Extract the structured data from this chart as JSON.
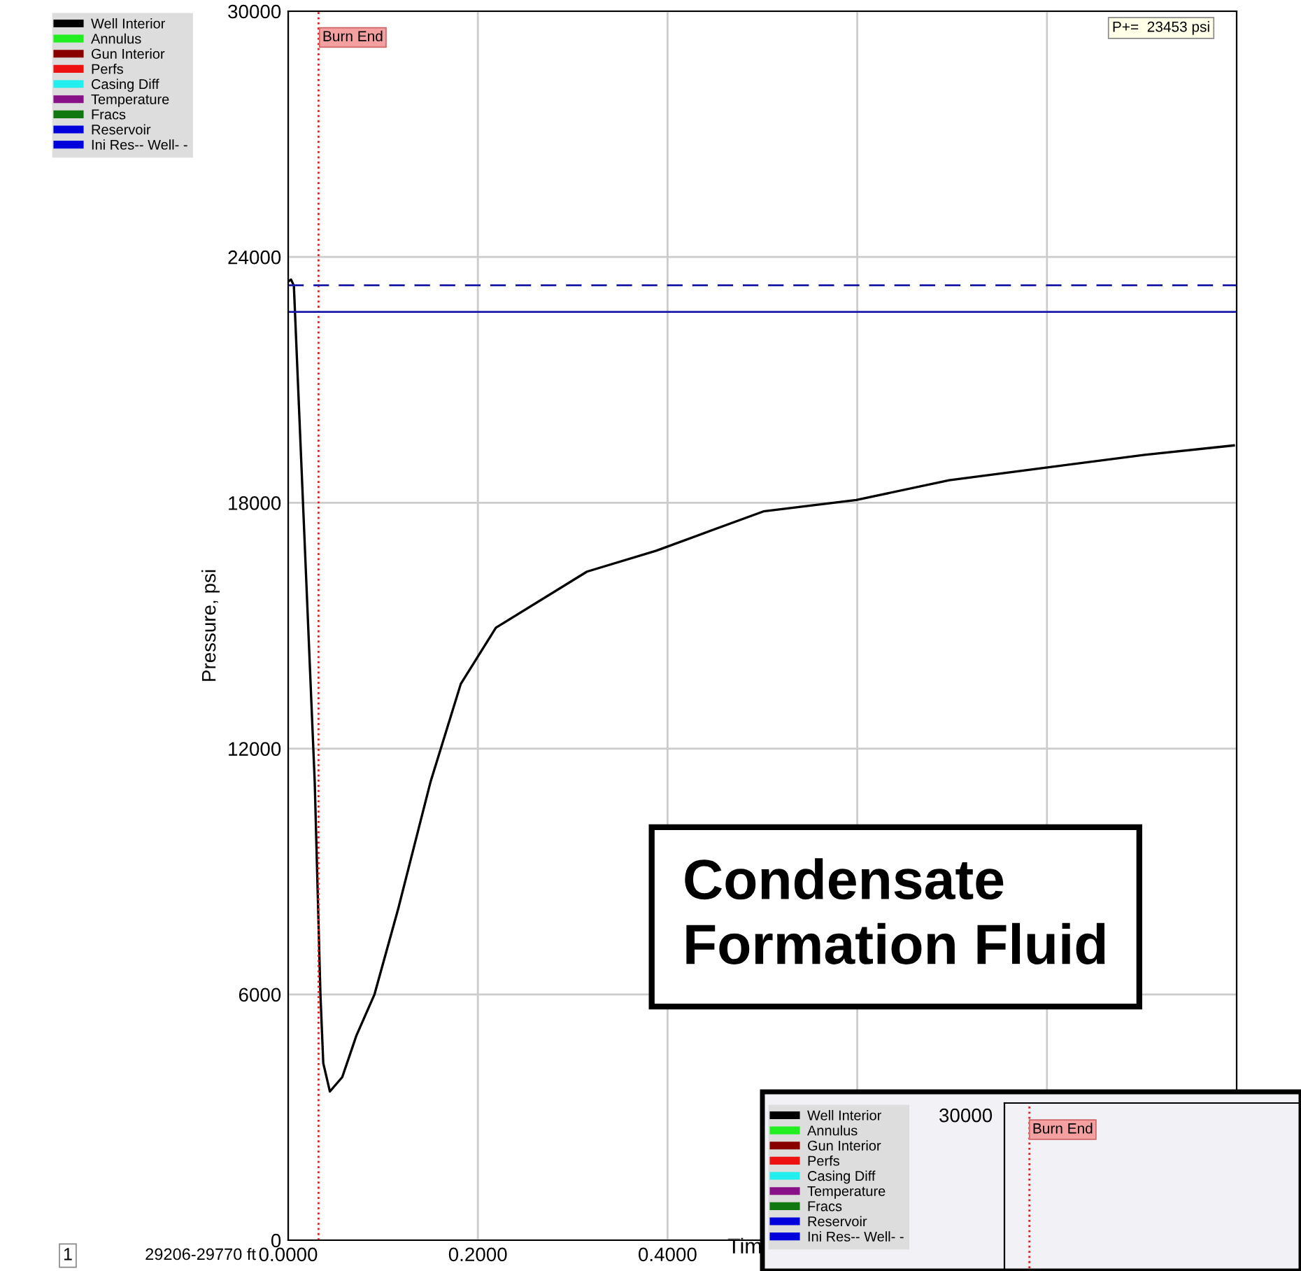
{
  "chart_data": [
    {
      "type": "line",
      "ylabel": "Pressure, psi",
      "xlabel": "Tim",
      "xlim": [
        0,
        1.0
      ],
      "xticks": [
        {
          "value": 0,
          "label": "0.0000"
        },
        {
          "value": 0.2,
          "label": "0.2000"
        },
        {
          "value": 0.4,
          "label": "0.4000"
        },
        {
          "value": 0.6,
          "label": null
        },
        {
          "value": 0.8,
          "label": null
        }
      ],
      "ylim": [
        0,
        30000
      ],
      "yticks": [
        0,
        6000,
        12000,
        18000,
        24000,
        30000
      ],
      "grid": true,
      "legend": "top left",
      "series": [
        {
          "name": "Well Interior",
          "color": "#000000",
          "x": [
            0,
            0.003,
            0.006,
            0.028,
            0.034,
            0.037,
            0.044,
            0.057,
            0.072,
            0.091,
            0.116,
            0.15,
            0.182,
            0.219,
            0.315,
            0.388,
            0.501,
            0.599,
            0.697,
            0.799,
            0.903,
            0.997
          ],
          "values": [
            23400,
            23450,
            23300,
            11180,
            6000,
            4320,
            3630,
            3980,
            5000,
            6000,
            8090,
            11180,
            13580,
            14950,
            16320,
            16830,
            17790,
            18070,
            18550,
            18860,
            19170,
            19400
          ]
        },
        {
          "name": "Annulus",
          "color": "#22ee22"
        },
        {
          "name": "Gun Interior",
          "color": "#880000"
        },
        {
          "name": "Perfs",
          "color": "#ee1111"
        },
        {
          "name": "Casing Diff",
          "color": "#22eeee"
        },
        {
          "name": "Temperature",
          "color": "#881188"
        },
        {
          "name": "Fracs",
          "color": "#117711"
        },
        {
          "name": "Reservoir",
          "color": "#0000dd"
        },
        {
          "name": "Ini Res-- Well- -",
          "color": "#0000dd"
        }
      ],
      "ref_lines": [
        {
          "axis": "x",
          "value": 0.032,
          "label": "Burn End",
          "color": "#dd2222",
          "line_style": "dotted"
        },
        {
          "axis": "y",
          "value": 23310,
          "label": null,
          "color": "#1a1aaa",
          "line_style": "dashed"
        },
        {
          "axis": "y",
          "value": 22660,
          "label": null,
          "color": "#1a1aaa",
          "line_style": "solid"
        }
      ],
      "annotations": [
        "P+=  23453 psi",
        "Condensate\nFormation Fluid",
        "1",
        "29206-29770 ft"
      ]
    },
    {
      "type": "other",
      "legend": "top left",
      "annotations": [
        "30000",
        "Burn End"
      ],
      "series": [
        {
          "name": "Well Interior",
          "color": "#000000"
        },
        {
          "name": "Annulus",
          "color": "#22ee22"
        },
        {
          "name": "Gun Interior",
          "color": "#880000"
        },
        {
          "name": "Perfs",
          "color": "#ee1111"
        },
        {
          "name": "Casing Diff",
          "color": "#22eeee"
        },
        {
          "name": "Temperature",
          "color": "#881188"
        },
        {
          "name": "Fracs",
          "color": "#117711"
        },
        {
          "name": "Reservoir",
          "color": "#0000dd"
        },
        {
          "name": "Ini Res-- Well- -",
          "color": "#0000dd"
        }
      ]
    }
  ]
}
